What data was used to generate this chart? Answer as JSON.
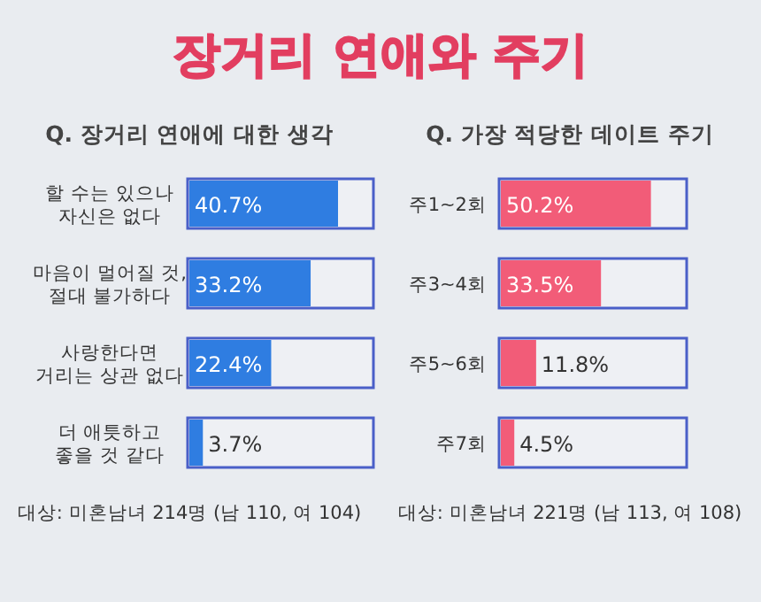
{
  "chart_data": [
    {
      "type": "bar",
      "orientation": "horizontal",
      "title": "장거리 연애와 주기",
      "subtitle": "Q. 장거리 연애에 대한 생각",
      "categories": [
        "할 수는 있으나\n자신은 없다",
        "마음이 멀어질 것,\n절대 불가하다",
        "사랑한다면\n거리는 상관 없다",
        "더 애틋하고\n좋을 것 같다"
      ],
      "values": [
        40.7,
        33.2,
        22.4,
        3.7
      ],
      "value_labels": [
        "40.7%",
        "33.2%",
        "22.4%",
        "3.7%"
      ],
      "color": "#2f7de1",
      "annotations": [
        "대상: 미혼남녀 214명 (남 110, 여 104)"
      ]
    },
    {
      "type": "bar",
      "orientation": "horizontal",
      "subtitle": "Q. 가장 적당한 데이트 주기",
      "categories": [
        "주1~2회",
        "주3~4회",
        "주5~6회",
        "주7회"
      ],
      "values": [
        50.2,
        33.5,
        11.8,
        4.5
      ],
      "value_labels": [
        "50.2%",
        "33.5%",
        "11.8%",
        "4.5%"
      ],
      "color": "#f25c78",
      "annotations": [
        "대상: 미혼남녀 221명 (남 113, 여 108)"
      ]
    }
  ]
}
